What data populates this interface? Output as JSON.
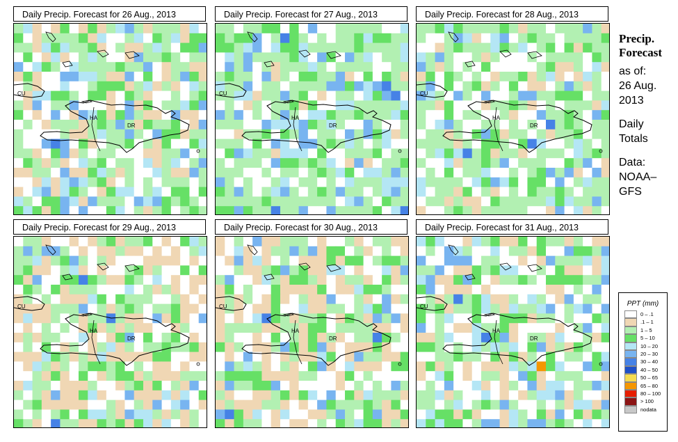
{
  "panels": [
    {
      "title": "Daily Precip. Forecast for  26 Aug., 2013"
    },
    {
      "title": "Daily Precip. Forecast for  27 Aug., 2013"
    },
    {
      "title": "Daily Precip. Forecast for  28 Aug., 2013"
    },
    {
      "title": "Daily Precip. Forecast for  29 Aug., 2013"
    },
    {
      "title": "Daily Precip. Forecast for  30 Aug., 2013"
    },
    {
      "title": "Daily Precip. Forecast for  31 Aug., 2013"
    }
  ],
  "map_labels": {
    "cuba": "CU",
    "haiti": "HA",
    "dr": "DR"
  },
  "side_info": {
    "title_line1": "Precip.",
    "title_line2": "Forecast",
    "asof_label": "as of:",
    "date_line1": "26 Aug.",
    "date_line2": "2013",
    "totals_line1": "Daily",
    "totals_line2": "Totals",
    "data_line1": "Data:",
    "data_line2": "NOAA–",
    "data_line3": "GFS"
  },
  "legend": {
    "title": "PPT (mm)",
    "items": [
      {
        "label": "0 – .1",
        "color": "#ffffff"
      },
      {
        "label": ".1 – 1",
        "color": "#f0d7b4"
      },
      {
        "label": "1 – 5",
        "color": "#b2f0b2"
      },
      {
        "label": "5 – 10",
        "color": "#66e066"
      },
      {
        "label": "10 – 20",
        "color": "#b4e6f5"
      },
      {
        "label": "20 – 30",
        "color": "#78b4f0"
      },
      {
        "label": "30 – 40",
        "color": "#4682e6"
      },
      {
        "label": "40 – 50",
        "color": "#1e50c8"
      },
      {
        "label": "50 – 65",
        "color": "#f5dc50"
      },
      {
        "label": "65 – 80",
        "color": "#f59600"
      },
      {
        "label": "80 – 100",
        "color": "#e61e00"
      },
      {
        "label": "> 100",
        "color": "#8c1414"
      },
      {
        "label": "nodata",
        "color": "#c8c8c8"
      }
    ]
  }
}
